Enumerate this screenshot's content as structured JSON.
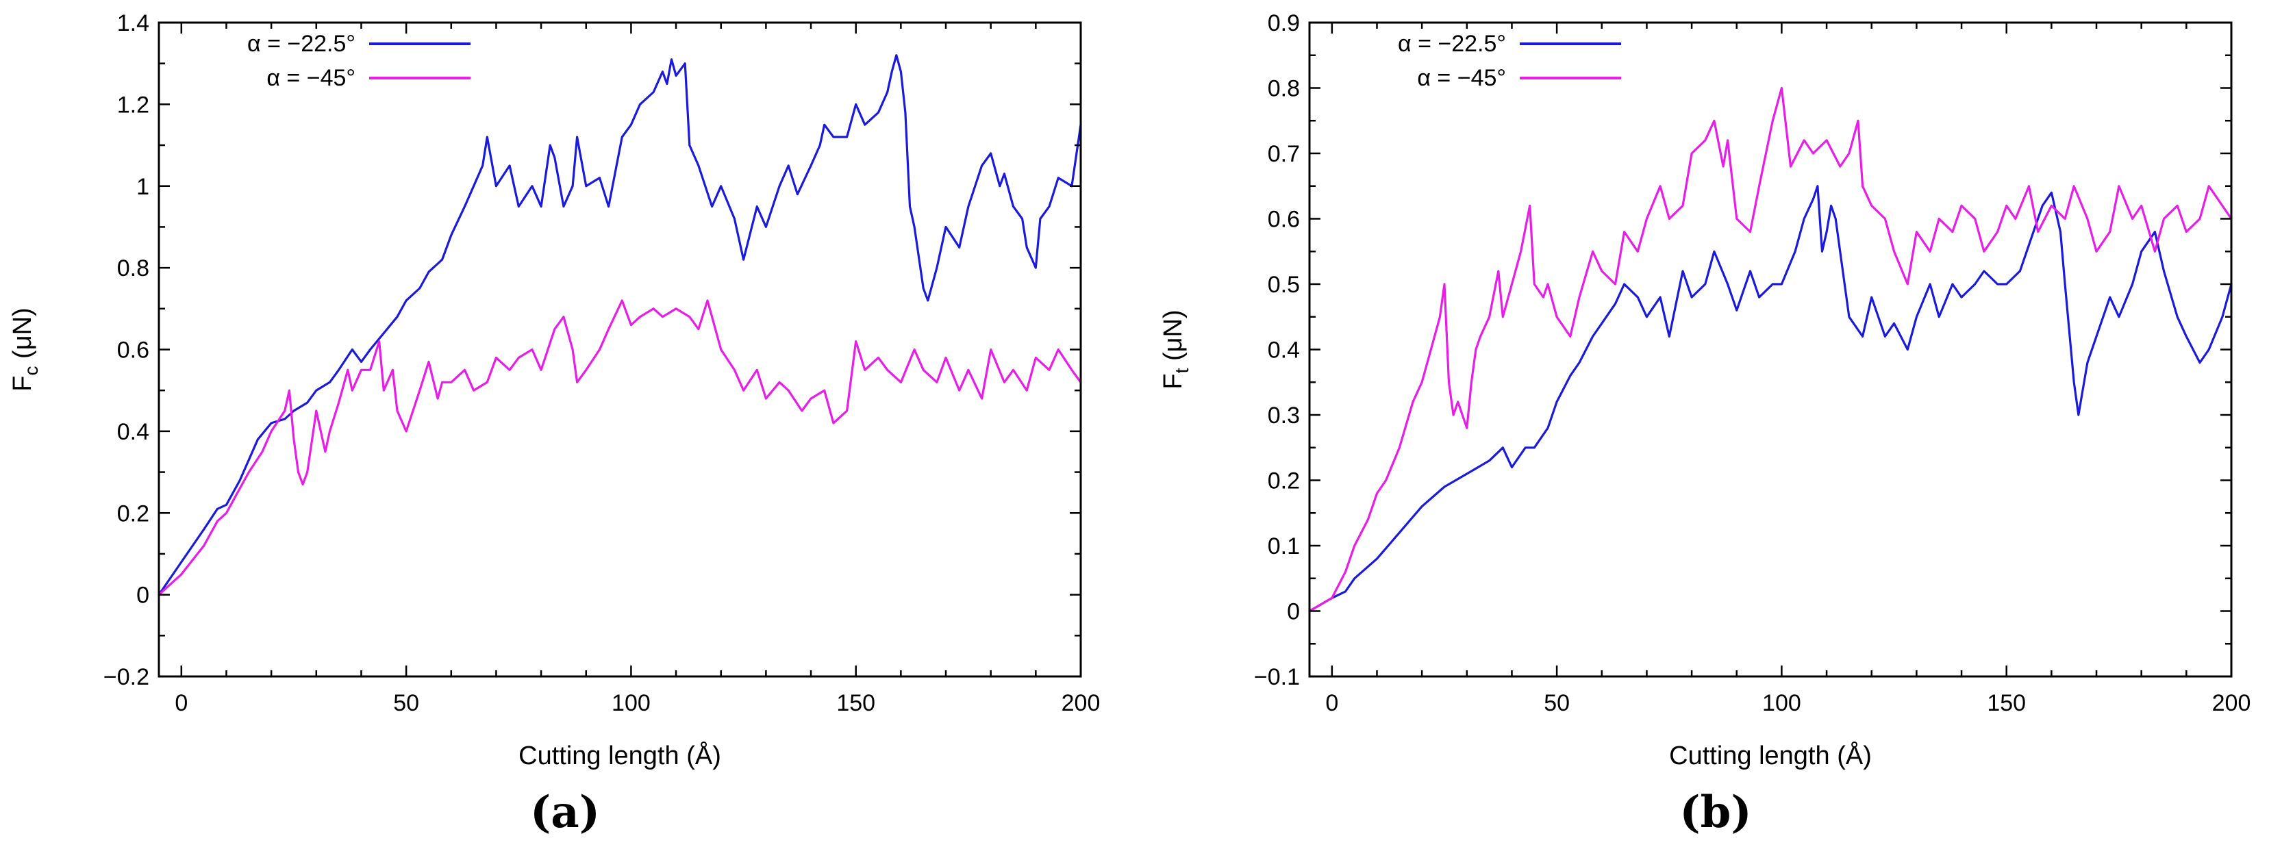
{
  "colors": {
    "blue": "#1a1adc",
    "magenta": "#e81de8"
  },
  "chart_data": [
    {
      "type": "line",
      "panel_label": "(a)",
      "xlabel": "Cutting length (Å)",
      "ylabel_main": "F",
      "ylabel_sub": "c",
      "ylabel_unit": " (μN)",
      "xlim": [
        -5,
        200
      ],
      "ylim": [
        -0.2,
        1.4
      ],
      "xticks": [
        0,
        50,
        100,
        150,
        200
      ],
      "xtick_labels": [
        "0",
        "50",
        "100",
        "150",
        "200"
      ],
      "yticks": [
        -0.2,
        0,
        0.2,
        0.4,
        0.6,
        0.8,
        1,
        1.2,
        1.4
      ],
      "ytick_labels": [
        "−0.2",
        "0",
        "0.2",
        "0.4",
        "0.6",
        "0.8",
        "1",
        "1.2",
        "1.4"
      ],
      "grid": false,
      "legend_position": "top-left",
      "series": [
        {
          "name": "α = −22.5°",
          "color": "#1a1adc",
          "x": [
            -5,
            0,
            5,
            8,
            10,
            13,
            15,
            17,
            20,
            23,
            25,
            28,
            30,
            33,
            35,
            38,
            40,
            42,
            45,
            48,
            50,
            53,
            55,
            58,
            60,
            63,
            65,
            67,
            68,
            70,
            73,
            75,
            78,
            80,
            82,
            83,
            85,
            87,
            88,
            90,
            93,
            95,
            98,
            100,
            102,
            105,
            107,
            108,
            109,
            110,
            112,
            113,
            115,
            118,
            120,
            123,
            125,
            128,
            130,
            133,
            135,
            137,
            140,
            142,
            143,
            145,
            148,
            150,
            152,
            155,
            157,
            158,
            159,
            160,
            161,
            162,
            163,
            165,
            166,
            168,
            170,
            173,
            175,
            178,
            180,
            182,
            183,
            185,
            187,
            188,
            190,
            191,
            193,
            195,
            198,
            200
          ],
          "y": [
            0,
            0.08,
            0.16,
            0.21,
            0.22,
            0.28,
            0.33,
            0.38,
            0.42,
            0.43,
            0.45,
            0.47,
            0.5,
            0.52,
            0.55,
            0.6,
            0.57,
            0.6,
            0.64,
            0.68,
            0.72,
            0.75,
            0.79,
            0.82,
            0.88,
            0.95,
            1.0,
            1.05,
            1.12,
            1.0,
            1.05,
            0.95,
            1.0,
            0.95,
            1.1,
            1.07,
            0.95,
            1.0,
            1.12,
            1.0,
            1.02,
            0.95,
            1.12,
            1.15,
            1.2,
            1.23,
            1.28,
            1.25,
            1.31,
            1.27,
            1.3,
            1.1,
            1.05,
            0.95,
            1.0,
            0.92,
            0.82,
            0.95,
            0.9,
            1.0,
            1.05,
            0.98,
            1.05,
            1.1,
            1.15,
            1.12,
            1.12,
            1.2,
            1.15,
            1.18,
            1.23,
            1.28,
            1.32,
            1.28,
            1.18,
            0.95,
            0.9,
            0.75,
            0.72,
            0.8,
            0.9,
            0.85,
            0.95,
            1.05,
            1.08,
            1.0,
            1.03,
            0.95,
            0.92,
            0.85,
            0.8,
            0.92,
            0.95,
            1.02,
            1.0,
            1.15
          ]
        },
        {
          "name": "α = −45°",
          "color": "#e81de8",
          "x": [
            -5,
            0,
            5,
            8,
            10,
            13,
            15,
            18,
            20,
            23,
            24,
            25,
            26,
            27,
            28,
            30,
            32,
            33,
            35,
            37,
            38,
            40,
            42,
            44,
            45,
            47,
            48,
            50,
            53,
            55,
            57,
            58,
            60,
            63,
            65,
            68,
            70,
            73,
            75,
            78,
            80,
            83,
            85,
            87,
            88,
            90,
            93,
            95,
            98,
            100,
            102,
            105,
            107,
            110,
            113,
            115,
            117,
            118,
            120,
            123,
            125,
            128,
            130,
            133,
            135,
            138,
            140,
            143,
            145,
            148,
            150,
            152,
            155,
            157,
            160,
            163,
            165,
            168,
            170,
            173,
            175,
            178,
            180,
            183,
            185,
            188,
            190,
            193,
            195,
            198,
            200
          ],
          "y": [
            0,
            0.05,
            0.12,
            0.18,
            0.2,
            0.26,
            0.3,
            0.35,
            0.4,
            0.45,
            0.5,
            0.38,
            0.3,
            0.27,
            0.3,
            0.45,
            0.35,
            0.4,
            0.47,
            0.55,
            0.5,
            0.55,
            0.55,
            0.62,
            0.5,
            0.55,
            0.45,
            0.4,
            0.5,
            0.57,
            0.48,
            0.52,
            0.52,
            0.55,
            0.5,
            0.52,
            0.58,
            0.55,
            0.58,
            0.6,
            0.55,
            0.65,
            0.68,
            0.6,
            0.52,
            0.55,
            0.6,
            0.65,
            0.72,
            0.66,
            0.68,
            0.7,
            0.68,
            0.7,
            0.68,
            0.65,
            0.72,
            0.68,
            0.6,
            0.55,
            0.5,
            0.55,
            0.48,
            0.52,
            0.5,
            0.45,
            0.48,
            0.5,
            0.42,
            0.45,
            0.62,
            0.55,
            0.58,
            0.55,
            0.52,
            0.6,
            0.55,
            0.52,
            0.58,
            0.5,
            0.55,
            0.48,
            0.6,
            0.52,
            0.55,
            0.5,
            0.58,
            0.55,
            0.6,
            0.55,
            0.52
          ]
        }
      ]
    },
    {
      "type": "line",
      "panel_label": "(b)",
      "xlabel": "Cutting length (Å)",
      "ylabel_main": "F",
      "ylabel_sub": "t",
      "ylabel_unit": " (μN)",
      "xlim": [
        -5,
        200
      ],
      "ylim": [
        -0.1,
        0.9
      ],
      "xticks": [
        0,
        50,
        100,
        150,
        200
      ],
      "xtick_labels": [
        "0",
        "50",
        "100",
        "150",
        "200"
      ],
      "yticks": [
        -0.1,
        0,
        0.1,
        0.2,
        0.3,
        0.4,
        0.5,
        0.6,
        0.7,
        0.8,
        0.9
      ],
      "ytick_labels": [
        "−0.1",
        "0",
        "0.1",
        "0.2",
        "0.3",
        "0.4",
        "0.5",
        "0.6",
        "0.7",
        "0.8",
        "0.9"
      ],
      "grid": false,
      "legend_position": "top-left",
      "series": [
        {
          "name": "α = −22.5°",
          "color": "#1a1adc",
          "x": [
            -5,
            0,
            3,
            5,
            10,
            15,
            20,
            25,
            30,
            35,
            38,
            40,
            43,
            45,
            48,
            50,
            53,
            55,
            58,
            60,
            63,
            65,
            68,
            70,
            73,
            75,
            78,
            80,
            83,
            85,
            88,
            90,
            93,
            95,
            98,
            100,
            103,
            105,
            107,
            108,
            109,
            110,
            111,
            112,
            115,
            118,
            120,
            123,
            125,
            128,
            130,
            133,
            135,
            138,
            140,
            143,
            145,
            148,
            150,
            153,
            155,
            158,
            160,
            162,
            163,
            165,
            166,
            168,
            170,
            173,
            175,
            178,
            180,
            183,
            185,
            188,
            190,
            193,
            195,
            198,
            200
          ],
          "y": [
            0,
            0.02,
            0.03,
            0.05,
            0.08,
            0.12,
            0.16,
            0.19,
            0.21,
            0.23,
            0.25,
            0.22,
            0.25,
            0.25,
            0.28,
            0.32,
            0.36,
            0.38,
            0.42,
            0.44,
            0.47,
            0.5,
            0.48,
            0.45,
            0.48,
            0.42,
            0.52,
            0.48,
            0.5,
            0.55,
            0.5,
            0.46,
            0.52,
            0.48,
            0.5,
            0.5,
            0.55,
            0.6,
            0.63,
            0.65,
            0.55,
            0.58,
            0.62,
            0.6,
            0.45,
            0.42,
            0.48,
            0.42,
            0.44,
            0.4,
            0.45,
            0.5,
            0.45,
            0.5,
            0.48,
            0.5,
            0.52,
            0.5,
            0.5,
            0.52,
            0.56,
            0.62,
            0.64,
            0.58,
            0.5,
            0.35,
            0.3,
            0.38,
            0.42,
            0.48,
            0.45,
            0.5,
            0.55,
            0.58,
            0.52,
            0.45,
            0.42,
            0.38,
            0.4,
            0.45,
            0.5
          ]
        },
        {
          "name": "α = −45°",
          "color": "#e81de8",
          "x": [
            -5,
            0,
            3,
            5,
            8,
            10,
            12,
            15,
            18,
            20,
            22,
            24,
            25,
            26,
            27,
            28,
            30,
            31,
            32,
            33,
            35,
            37,
            38,
            40,
            42,
            44,
            45,
            47,
            48,
            50,
            53,
            55,
            58,
            60,
            63,
            65,
            68,
            70,
            73,
            75,
            78,
            80,
            83,
            85,
            87,
            88,
            90,
            93,
            95,
            98,
            100,
            102,
            105,
            107,
            110,
            113,
            115,
            117,
            118,
            120,
            123,
            125,
            128,
            130,
            133,
            135,
            138,
            140,
            143,
            145,
            148,
            150,
            152,
            155,
            157,
            160,
            163,
            165,
            168,
            170,
            173,
            175,
            178,
            180,
            183,
            185,
            188,
            190,
            193,
            195,
            198,
            200
          ],
          "y": [
            0,
            0.02,
            0.06,
            0.1,
            0.14,
            0.18,
            0.2,
            0.25,
            0.32,
            0.35,
            0.4,
            0.45,
            0.5,
            0.35,
            0.3,
            0.32,
            0.28,
            0.35,
            0.4,
            0.42,
            0.45,
            0.52,
            0.45,
            0.5,
            0.55,
            0.62,
            0.5,
            0.48,
            0.5,
            0.45,
            0.42,
            0.48,
            0.55,
            0.52,
            0.5,
            0.58,
            0.55,
            0.6,
            0.65,
            0.6,
            0.62,
            0.7,
            0.72,
            0.75,
            0.68,
            0.72,
            0.6,
            0.58,
            0.65,
            0.75,
            0.8,
            0.68,
            0.72,
            0.7,
            0.72,
            0.68,
            0.7,
            0.75,
            0.65,
            0.62,
            0.6,
            0.55,
            0.5,
            0.58,
            0.55,
            0.6,
            0.58,
            0.62,
            0.6,
            0.55,
            0.58,
            0.62,
            0.6,
            0.65,
            0.58,
            0.62,
            0.6,
            0.65,
            0.6,
            0.55,
            0.58,
            0.65,
            0.6,
            0.62,
            0.55,
            0.6,
            0.62,
            0.58,
            0.6,
            0.65,
            0.62,
            0.6
          ]
        }
      ]
    }
  ]
}
